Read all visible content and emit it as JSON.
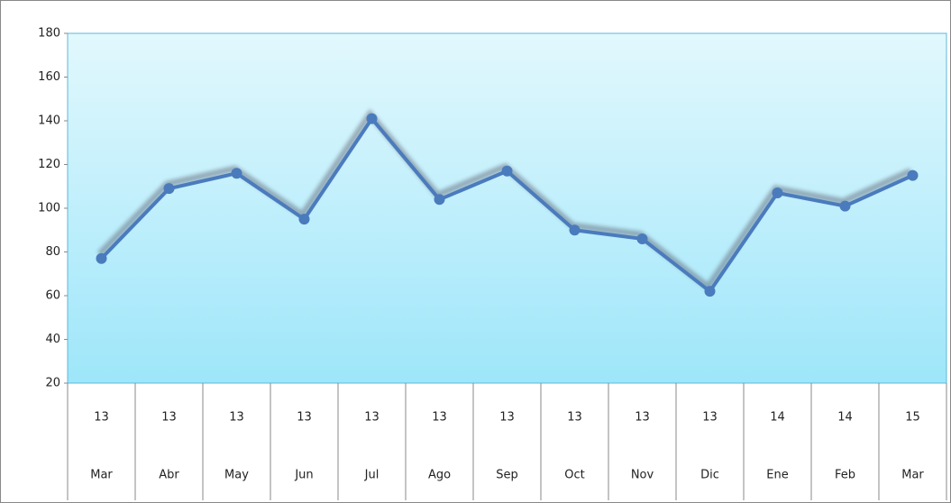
{
  "chart_data": {
    "type": "line",
    "categories": [
      "Mar",
      "Abr",
      "May",
      "Jun",
      "Jul",
      "Ago",
      "Sep",
      "Oct",
      "Nov",
      "Dic",
      "Ene",
      "Feb",
      "Mar"
    ],
    "year_labels": [
      "13",
      "13",
      "13",
      "13",
      "13",
      "13",
      "13",
      "13",
      "13",
      "13",
      "14",
      "14",
      "15"
    ],
    "values": [
      77,
      109,
      116,
      95,
      141,
      104,
      117,
      90,
      86,
      62,
      107,
      101,
      115
    ],
    "color": "#4a7bbd",
    "ylim": [
      20,
      180
    ],
    "yticks": [
      20,
      40,
      60,
      80,
      100,
      120,
      140,
      160,
      180
    ]
  }
}
